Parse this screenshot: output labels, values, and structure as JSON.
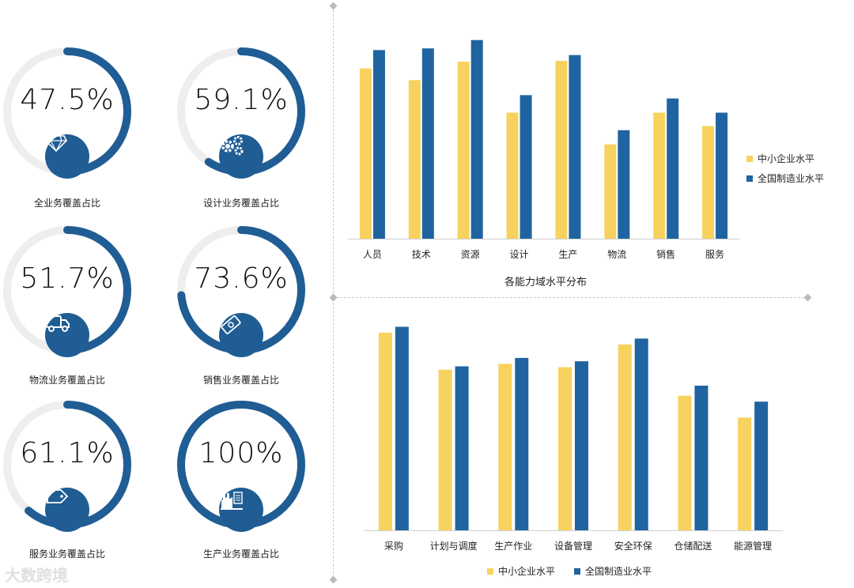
{
  "colors": {
    "primary": "#1f5d94",
    "track": "#eeeeee",
    "sme": "#f7d25e",
    "national": "#1f64a0"
  },
  "gauges": [
    {
      "id": "all",
      "percent_text": "47.5%",
      "value": 47.5,
      "label": "全业务覆盖占比",
      "icon": "diamond-icon"
    },
    {
      "id": "design",
      "percent_text": "59.1%",
      "value": 59.1,
      "label": "设计业务覆盖占比",
      "icon": "gears-icon"
    },
    {
      "id": "logistics",
      "percent_text": "51.7%",
      "value": 51.7,
      "label": "物流业务覆盖占比",
      "icon": "truck-icon"
    },
    {
      "id": "sales",
      "percent_text": "73.6%",
      "value": 73.6,
      "label": "销售业务覆盖占比",
      "icon": "money-icon"
    },
    {
      "id": "service",
      "percent_text": "61.1%",
      "value": 61.1,
      "label": "服务业务覆盖占比",
      "icon": "tag-icon"
    },
    {
      "id": "production",
      "percent_text": "100%",
      "value": 100,
      "label": "生产业务覆盖占比",
      "icon": "factory-icon"
    }
  ],
  "watermark": "大数跨境",
  "chart_data": [
    {
      "type": "bar",
      "title": "各能力域水平分布",
      "categories": [
        "人员",
        "技术",
        "资源",
        "设计",
        "生产",
        "物流",
        "销售",
        "服务"
      ],
      "series": [
        {
          "name": "中小企业水平",
          "values": [
            2.04,
            1.9,
            2.12,
            1.51,
            2.13,
            1.13,
            1.51,
            1.35
          ]
        },
        {
          "name": "全国制造业水平",
          "values": [
            2.26,
            2.28,
            2.38,
            1.72,
            2.2,
            1.3,
            1.68,
            1.51
          ]
        }
      ],
      "ylim": [
        0,
        2.5
      ],
      "legend": "right",
      "grid": false
    },
    {
      "type": "bar",
      "categories": [
        "采购",
        "计划与调度",
        "生产作业",
        "设备管理",
        "安全环保",
        "仓储配送",
        "能源管理"
      ],
      "series": [
        {
          "name": "中小企业水平",
          "values": [
            2.35,
            1.91,
            1.98,
            1.94,
            2.21,
            1.6,
            1.34
          ]
        },
        {
          "name": "全国制造业水平",
          "values": [
            2.42,
            1.95,
            2.05,
            2.01,
            2.28,
            1.72,
            1.53
          ]
        }
      ],
      "ylim": [
        0,
        2.5
      ],
      "legend": "bottom",
      "grid": false
    }
  ]
}
